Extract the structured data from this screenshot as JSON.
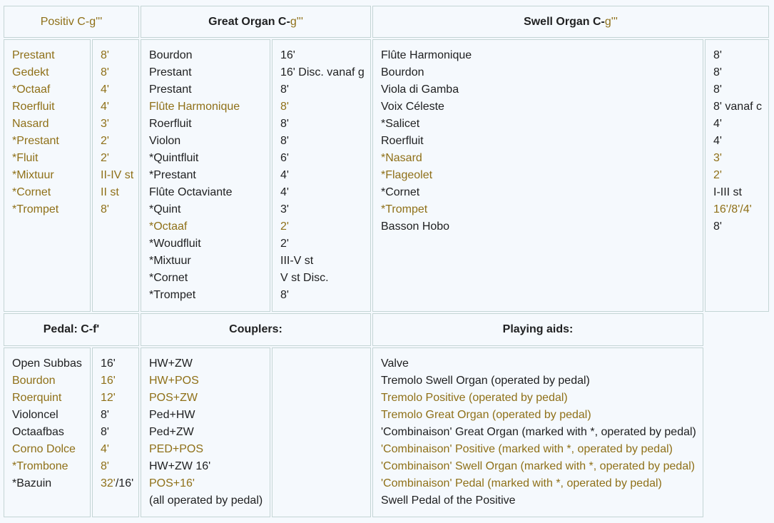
{
  "colors": {
    "gold": "#8f7018",
    "text": "#202122",
    "background": "#f5f9fd",
    "border": "#c4d5d5"
  },
  "headers": {
    "positiv": {
      "text": "Positiv C-g'''"
    },
    "great": {
      "bold": "Great Organ C-",
      "tail": "g'''"
    },
    "swell": {
      "bold": "Swell Organ C-",
      "tail": "g'''"
    },
    "pedal": "Pedal: C-f'",
    "couplers": "Couplers:",
    "aids": "Playing aids:"
  },
  "positiv": {
    "names": [
      {
        "text": "Prestant",
        "tone": "gold"
      },
      {
        "text": "Gedekt",
        "tone": "gold"
      },
      {
        "text": "*Octaaf",
        "tone": "gold"
      },
      {
        "text": "Roerfluit",
        "tone": "gold"
      },
      {
        "text": "Nasard",
        "tone": "gold"
      },
      {
        "text": "*Prestant",
        "tone": "gold"
      },
      {
        "text": "*Fluit",
        "tone": "gold"
      },
      {
        "text": "*Mixtuur",
        "tone": "gold"
      },
      {
        "text": "*Cornet",
        "tone": "gold"
      },
      {
        "text": "*Trompet",
        "tone": "gold"
      }
    ],
    "sizes": [
      {
        "text": "8'",
        "tone": "gold"
      },
      {
        "text": "8'",
        "tone": "gold"
      },
      {
        "text": "4'",
        "tone": "gold"
      },
      {
        "text": "4'",
        "tone": "gold"
      },
      {
        "text": "3'",
        "tone": "gold"
      },
      {
        "text": "2'",
        "tone": "gold"
      },
      {
        "text": "2'",
        "tone": "gold"
      },
      {
        "text": "II-IV st",
        "tone": "gold"
      },
      {
        "text": "II st",
        "tone": "gold"
      },
      {
        "text": "8'",
        "tone": "gold"
      }
    ]
  },
  "great": {
    "names": [
      {
        "text": "Bourdon",
        "tone": "black"
      },
      {
        "text": "Prestant",
        "tone": "black"
      },
      {
        "text": "Prestant",
        "tone": "black"
      },
      {
        "text": "Flûte Harmonique",
        "tone": "gold"
      },
      {
        "text": "Roerfluit",
        "tone": "black"
      },
      {
        "text": "Violon",
        "tone": "black"
      },
      {
        "text": "*Quintfluit",
        "tone": "black"
      },
      {
        "text": "*Prestant",
        "tone": "black"
      },
      {
        "text": "Flûte Octaviante",
        "tone": "black"
      },
      {
        "text": "*Quint",
        "tone": "black"
      },
      {
        "text": "*Octaaf",
        "tone": "gold"
      },
      {
        "text": "*Woudfluit",
        "tone": "black"
      },
      {
        "text": "*Mixtuur",
        "tone": "black"
      },
      {
        "text": "*Cornet",
        "tone": "black"
      },
      {
        "text": "*Trompet",
        "tone": "black"
      }
    ],
    "sizes": [
      {
        "text": "16'",
        "tone": "black"
      },
      {
        "text": "16' Disc. vanaf g",
        "tone": "black"
      },
      {
        "text": "8'",
        "tone": "black"
      },
      {
        "text": "8'",
        "tone": "gold"
      },
      {
        "text": "8'",
        "tone": "black"
      },
      {
        "text": "8'",
        "tone": "black"
      },
      {
        "text": "6'",
        "tone": "black"
      },
      {
        "text": "4'",
        "tone": "black"
      },
      {
        "text": "4'",
        "tone": "black"
      },
      {
        "text": "3'",
        "tone": "black"
      },
      {
        "text": "2'",
        "tone": "gold"
      },
      {
        "text": "2'",
        "tone": "black"
      },
      {
        "text": "III-V st",
        "tone": "black"
      },
      {
        "text": "V st Disc.",
        "tone": "black"
      },
      {
        "text": "8'",
        "tone": "black"
      }
    ]
  },
  "swell": {
    "names": [
      {
        "text": "Flûte Harmonique",
        "tone": "black"
      },
      {
        "text": "Bourdon",
        "tone": "black"
      },
      {
        "text": "Viola di Gamba",
        "tone": "black"
      },
      {
        "text": "Voix Céleste",
        "tone": "black"
      },
      {
        "text": "*Salicet",
        "tone": "black"
      },
      {
        "text": "Roerfluit",
        "tone": "black"
      },
      {
        "text": "*Nasard",
        "tone": "gold"
      },
      {
        "text": "*Flageolet",
        "tone": "gold"
      },
      {
        "text": "*Cornet",
        "tone": "black"
      },
      {
        "text": "*Trompet",
        "tone": "gold"
      },
      {
        "text": "Basson Hobo",
        "tone": "black"
      }
    ],
    "sizes": [
      {
        "text": "8'",
        "tone": "black"
      },
      {
        "text": "8'",
        "tone": "black"
      },
      {
        "text": "8'",
        "tone": "black"
      },
      {
        "text": "8' vanaf c",
        "tone": "black"
      },
      {
        "text": "4'",
        "tone": "black"
      },
      {
        "text": "4'",
        "tone": "black"
      },
      {
        "text": "3'",
        "tone": "gold"
      },
      {
        "text": "2'",
        "tone": "gold"
      },
      {
        "text": "I-III st",
        "tone": "black"
      },
      {
        "text": "16'/8'/4'",
        "tone": "gold"
      },
      {
        "text": "8'",
        "tone": "black"
      }
    ]
  },
  "pedal": {
    "names": [
      {
        "text": "Open Subbas",
        "tone": "black"
      },
      {
        "text": "Bourdon",
        "tone": "gold"
      },
      {
        "text": "Roerquint",
        "tone": "gold"
      },
      {
        "text": "Violoncel",
        "tone": "black"
      },
      {
        "text": "Octaafbas",
        "tone": "black"
      },
      {
        "text": "Corno Dolce",
        "tone": "gold"
      },
      {
        "text": "*Trombone",
        "tone": "gold"
      },
      {
        "text": "*Bazuin",
        "tone": "black"
      }
    ],
    "sizes": [
      {
        "text": "16'",
        "tone": "black"
      },
      {
        "text": "16'",
        "tone": "gold"
      },
      {
        "text": "12'",
        "tone": "gold"
      },
      {
        "text": "8'",
        "tone": "black"
      },
      {
        "text": "8'",
        "tone": "black"
      },
      {
        "text": "4'",
        "tone": "gold"
      },
      {
        "text": "8'",
        "tone": "gold"
      },
      {
        "parts": [
          {
            "text": "32'",
            "tone": "gold"
          },
          {
            "text": "/16'",
            "tone": "black"
          }
        ]
      }
    ]
  },
  "couplers": [
    {
      "text": "HW+ZW",
      "tone": "black"
    },
    {
      "text": "HW+POS",
      "tone": "gold"
    },
    {
      "text": "POS+ZW",
      "tone": "gold"
    },
    {
      "text": "Ped+HW",
      "tone": "black"
    },
    {
      "text": "Ped+ZW",
      "tone": "black"
    },
    {
      "text": "PED+POS",
      "tone": "gold"
    },
    {
      "text": "HW+ZW 16'",
      "tone": "black"
    },
    {
      "text": "POS+16'",
      "tone": "gold"
    },
    {
      "text": "(all operated by pedal)",
      "tone": "black"
    }
  ],
  "aids": [
    {
      "text": "Valve",
      "tone": "black"
    },
    {
      "text": "Tremolo Swell Organ (operated by pedal)",
      "tone": "black"
    },
    {
      "text": "Tremolo Positive (operated by pedal)",
      "tone": "gold"
    },
    {
      "text": "Tremolo Great Organ (operated by pedal)",
      "tone": "gold"
    },
    {
      "text": "'Combinaison' Great Organ (marked with *, operated by pedal)",
      "tone": "black"
    },
    {
      "text": "'Combinaison' Positive (marked with *, operated by pedal)",
      "tone": "gold"
    },
    {
      "text": "'Combinaison' Swell Organ (marked with *, operated by pedal)",
      "tone": "gold"
    },
    {
      "text": "'Combinaison' Pedal (marked with *, operated by pedal)",
      "tone": "gold"
    },
    {
      "text": "Swell Pedal of the Positive",
      "tone": "black"
    }
  ]
}
